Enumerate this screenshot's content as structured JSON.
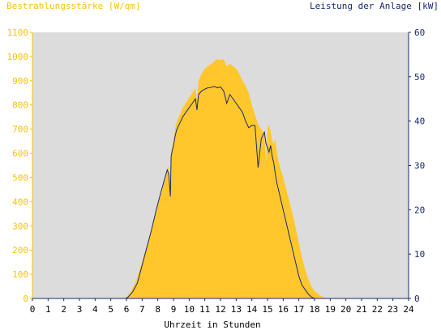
{
  "chart_data": {
    "type": "area",
    "ylabel_left": "Bestrahlungsstärke [W/qm]",
    "ylabel_right": "Leistung der Anlage [kW]",
    "xlabel": "Uhrzeit in Stunden",
    "xlim": [
      0,
      24
    ],
    "ylim_left": [
      0,
      1100
    ],
    "ylim_right": [
      0,
      60
    ],
    "x_ticks": [
      "0",
      "1",
      "2",
      "3",
      "4",
      "5",
      "6",
      "7",
      "8",
      "9",
      "10",
      "11",
      "12",
      "13",
      "14",
      "15",
      "16",
      "17",
      "18",
      "19",
      "20",
      "21",
      "22",
      "23",
      "24"
    ],
    "y_ticks_left": [
      "0",
      "100",
      "200",
      "300",
      "400",
      "500",
      "600",
      "700",
      "800",
      "900",
      "1000",
      "1100"
    ],
    "y_ticks_right": [
      "0",
      "10",
      "20",
      "30",
      "40",
      "50",
      "60"
    ],
    "colors": {
      "plot_background": "#dcdcdc",
      "irradiance_fill": "#ffc72c",
      "power_line": "#1a2a6c",
      "left_axis": "#f5c211",
      "right_axis": "#1a2a6c"
    },
    "series": [
      {
        "axis": "left",
        "style": "area",
        "x": [
          0,
          5.9,
          6.0,
          6.3,
          6.6,
          7.0,
          7.3,
          7.6,
          7.9,
          8.2,
          8.4,
          8.6,
          8.7,
          8.8,
          8.85,
          8.9,
          9.0,
          9.1,
          9.2,
          9.4,
          9.6,
          9.8,
          10.0,
          10.2,
          10.4,
          10.5,
          10.6,
          10.8,
          11.0,
          11.2,
          11.4,
          11.6,
          11.8,
          12.0,
          12.2,
          12.4,
          12.6,
          12.8,
          13.0,
          13.2,
          13.4,
          13.6,
          13.8,
          14.0,
          14.2,
          14.4,
          14.6,
          14.8,
          14.9,
          15.0,
          15.1,
          15.2,
          15.3,
          15.4,
          15.5,
          15.6,
          15.8,
          16.0,
          16.2,
          16.4,
          16.6,
          16.8,
          17.0,
          17.2,
          17.4,
          17.6,
          17.8,
          18.0,
          18.2,
          18.4,
          18.6,
          18.8,
          19.0,
          19.1,
          24
        ],
        "y": [
          0,
          0,
          5,
          30,
          70,
          150,
          220,
          290,
          370,
          430,
          480,
          530,
          550,
          420,
          600,
          620,
          650,
          700,
          730,
          760,
          790,
          810,
          830,
          850,
          870,
          820,
          900,
          930,
          950,
          960,
          970,
          980,
          990,
          985,
          990,
          960,
          970,
          960,
          950,
          930,
          900,
          880,
          850,
          800,
          760,
          720,
          700,
          680,
          560,
          700,
          720,
          690,
          650,
          640,
          660,
          600,
          540,
          500,
          450,
          400,
          350,
          290,
          230,
          170,
          120,
          80,
          50,
          30,
          20,
          10,
          5,
          2,
          0,
          0,
          0
        ]
      },
      {
        "axis": "right",
        "style": "line",
        "x": [
          0,
          5.95,
          6.1,
          6.4,
          6.7,
          7.0,
          7.3,
          7.6,
          7.9,
          8.2,
          8.4,
          8.6,
          8.7,
          8.8,
          8.85,
          8.9,
          9.0,
          9.1,
          9.2,
          9.4,
          9.6,
          9.8,
          10.0,
          10.2,
          10.4,
          10.5,
          10.6,
          10.8,
          11.0,
          11.2,
          11.4,
          11.6,
          11.8,
          12.0,
          12.2,
          12.4,
          12.6,
          12.8,
          13.0,
          13.2,
          13.4,
          13.6,
          13.8,
          14.0,
          14.2,
          14.4,
          14.6,
          14.8,
          14.9,
          15.0,
          15.1,
          15.2,
          15.3,
          15.4,
          15.5,
          15.6,
          15.8,
          16.0,
          16.2,
          16.4,
          16.6,
          16.8,
          17.0,
          17.2,
          17.4,
          17.6,
          17.8,
          18.0,
          18.2,
          18.4,
          18.6,
          18.8,
          19.0,
          19.2,
          24
        ],
        "y": [
          0,
          0,
          0.3,
          1.5,
          3.5,
          7.5,
          11.5,
          15.5,
          20,
          24,
          26.5,
          29,
          28,
          23,
          32,
          33,
          34.5,
          36.5,
          38,
          39.5,
          41,
          42,
          43,
          44,
          45,
          42.5,
          46,
          46.8,
          47.2,
          47.5,
          47.6,
          47.8,
          47.5,
          47.7,
          46.8,
          44,
          46,
          45,
          44,
          43,
          42,
          40,
          38.5,
          39,
          39,
          29.5,
          36,
          37.5,
          35,
          34,
          33,
          34.5,
          32,
          30.5,
          28,
          26,
          23,
          20,
          17,
          14,
          11,
          8,
          5,
          3,
          2,
          1,
          0.3,
          0,
          0,
          0,
          0,
          0,
          0,
          0,
          0
        ]
      }
    ]
  }
}
